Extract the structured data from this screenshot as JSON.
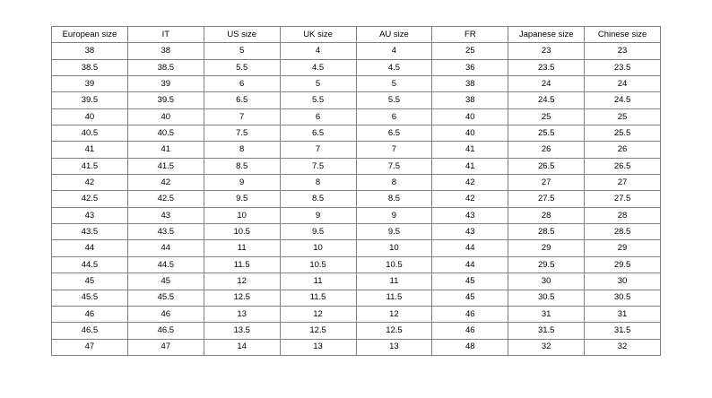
{
  "chart_data": {
    "type": "table",
    "columns": [
      "European size",
      "IT",
      "US size",
      "UK size",
      "AU size",
      "FR",
      "Japanese size",
      "Chinese size"
    ],
    "rows": [
      [
        "38",
        "38",
        "5",
        "4",
        "4",
        "25",
        "23",
        "23"
      ],
      [
        "38.5",
        "38.5",
        "5.5",
        "4.5",
        "4.5",
        "36",
        "23.5",
        "23.5"
      ],
      [
        "39",
        "39",
        "6",
        "5",
        "5",
        "38",
        "24",
        "24"
      ],
      [
        "39.5",
        "39.5",
        "6.5",
        "5.5",
        "5.5",
        "38",
        "24.5",
        "24.5"
      ],
      [
        "40",
        "40",
        "7",
        "6",
        "6",
        "40",
        "25",
        "25"
      ],
      [
        "40.5",
        "40.5",
        "7.5",
        "6.5",
        "6.5",
        "40",
        "25.5",
        "25.5"
      ],
      [
        "41",
        "41",
        "8",
        "7",
        "7",
        "41",
        "26",
        "26"
      ],
      [
        "41.5",
        "41.5",
        "8.5",
        "7.5",
        "7.5",
        "41",
        "26.5",
        "26.5"
      ],
      [
        "42",
        "42",
        "9",
        "8",
        "8",
        "42",
        "27",
        "27"
      ],
      [
        "42.5",
        "42.5",
        "9.5",
        "8.5",
        "8.5",
        "42",
        "27.5",
        "27.5"
      ],
      [
        "43",
        "43",
        "10",
        "9",
        "9",
        "43",
        "28",
        "28"
      ],
      [
        "43.5",
        "43.5",
        "10.5",
        "9.5",
        "9.5",
        "43",
        "28.5",
        "28.5"
      ],
      [
        "44",
        "44",
        "11",
        "10",
        "10",
        "44",
        "29",
        "29"
      ],
      [
        "44.5",
        "44.5",
        "11.5",
        "10.5",
        "10.5",
        "44",
        "29.5",
        "29.5"
      ],
      [
        "45",
        "45",
        "12",
        "11",
        "11",
        "45",
        "30",
        "30"
      ],
      [
        "45.5",
        "45.5",
        "12.5",
        "11.5",
        "11.5",
        "45",
        "30.5",
        "30.5"
      ],
      [
        "46",
        "46",
        "13",
        "12",
        "12",
        "46",
        "31",
        "31"
      ],
      [
        "46.5",
        "46.5",
        "13.5",
        "12.5",
        "12.5",
        "46",
        "31.5",
        "31.5"
      ],
      [
        "47",
        "47",
        "14",
        "13",
        "13",
        "48",
        "32",
        "32"
      ]
    ]
  },
  "colors": {
    "border": "#808080",
    "text": "#000000",
    "background": "#ffffff"
  }
}
